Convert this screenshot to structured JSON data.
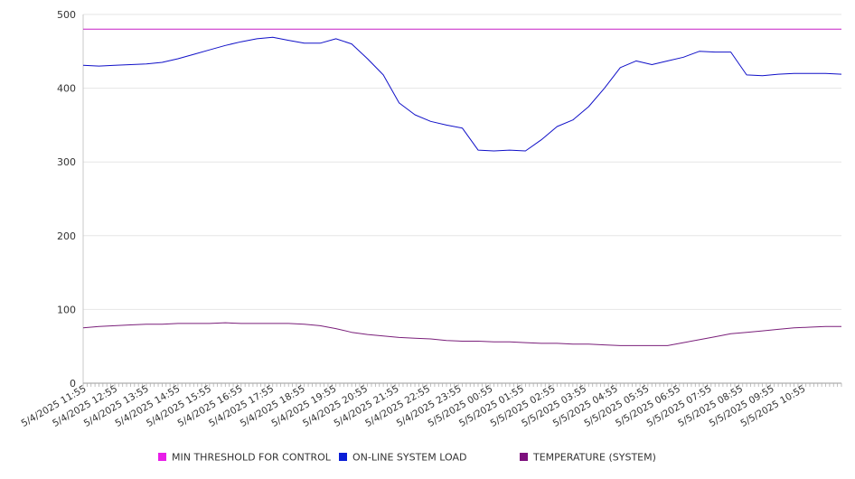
{
  "chart_data": {
    "type": "line",
    "title": "",
    "xlabel": "",
    "ylabel": "",
    "ylim": [
      0,
      500
    ],
    "yticks": [
      0,
      100,
      200,
      300,
      400,
      500
    ],
    "grid": "horizontal",
    "legend_position": "bottom",
    "x_tick_labels": [
      "5/4/2025 11:55",
      "5/4/2025 12:55",
      "5/4/2025 13:55",
      "5/4/2025 14:55",
      "5/4/2025 15:55",
      "5/4/2025 16:55",
      "5/4/2025 17:55",
      "5/4/2025 18:55",
      "5/4/2025 19:55",
      "5/4/2025 20:55",
      "5/4/2025 21:55",
      "5/4/2025 22:55",
      "5/4/2025 23:55",
      "5/5/2025 00:55",
      "5/5/2025 01:55",
      "5/5/2025 02:55",
      "5/5/2025 03:55",
      "5/5/2025 04:55",
      "5/5/2025 05:55",
      "5/5/2025 06:55",
      "5/5/2025 07:55",
      "5/5/2025 08:55",
      "5/5/2025 09:55",
      "5/5/2025 10:55"
    ],
    "series": [
      {
        "name": "MIN THRESHOLD FOR CONTROL",
        "color": "#c51fc5",
        "legend_color": "#e81ee8",
        "values": [
          480,
          480,
          480,
          480,
          480,
          480,
          480,
          480,
          480,
          480,
          480,
          480,
          480,
          480,
          480,
          480,
          480,
          480,
          480,
          480,
          480,
          480,
          480,
          480,
          480,
          480,
          480,
          480,
          480,
          480,
          480,
          480,
          480,
          480,
          480,
          480,
          480,
          480,
          480,
          480,
          480,
          480,
          480,
          480,
          480,
          480,
          480,
          480,
          480
        ]
      },
      {
        "name": "ON-LINE SYSTEM LOAD",
        "color": "#1010c8",
        "legend_color": "#0a1ed6",
        "values": [
          431,
          430,
          431,
          432,
          433,
          435,
          440,
          446,
          452,
          458,
          463,
          467,
          469,
          465,
          461,
          461,
          467,
          460,
          440,
          418,
          380,
          364,
          355,
          350,
          346,
          316,
          315,
          316,
          315,
          330,
          348,
          357,
          375,
          400,
          428,
          437,
          432,
          437,
          442,
          450,
          449,
          449,
          418,
          417,
          419,
          420,
          420,
          420,
          419
        ]
      },
      {
        "name": "TEMPERATURE (SYSTEM)",
        "color": "#7a1f7a",
        "legend_color": "#7d0f7d",
        "values": [
          75,
          77,
          78,
          79,
          80,
          80,
          81,
          81,
          81,
          82,
          81,
          81,
          81,
          81,
          80,
          78,
          74,
          69,
          66,
          64,
          62,
          61,
          60,
          58,
          57,
          57,
          56,
          56,
          55,
          54,
          54,
          53,
          53,
          52,
          51,
          51,
          51,
          51,
          55,
          59,
          63,
          67,
          69,
          71,
          73,
          75,
          76,
          77,
          77
        ]
      }
    ]
  }
}
